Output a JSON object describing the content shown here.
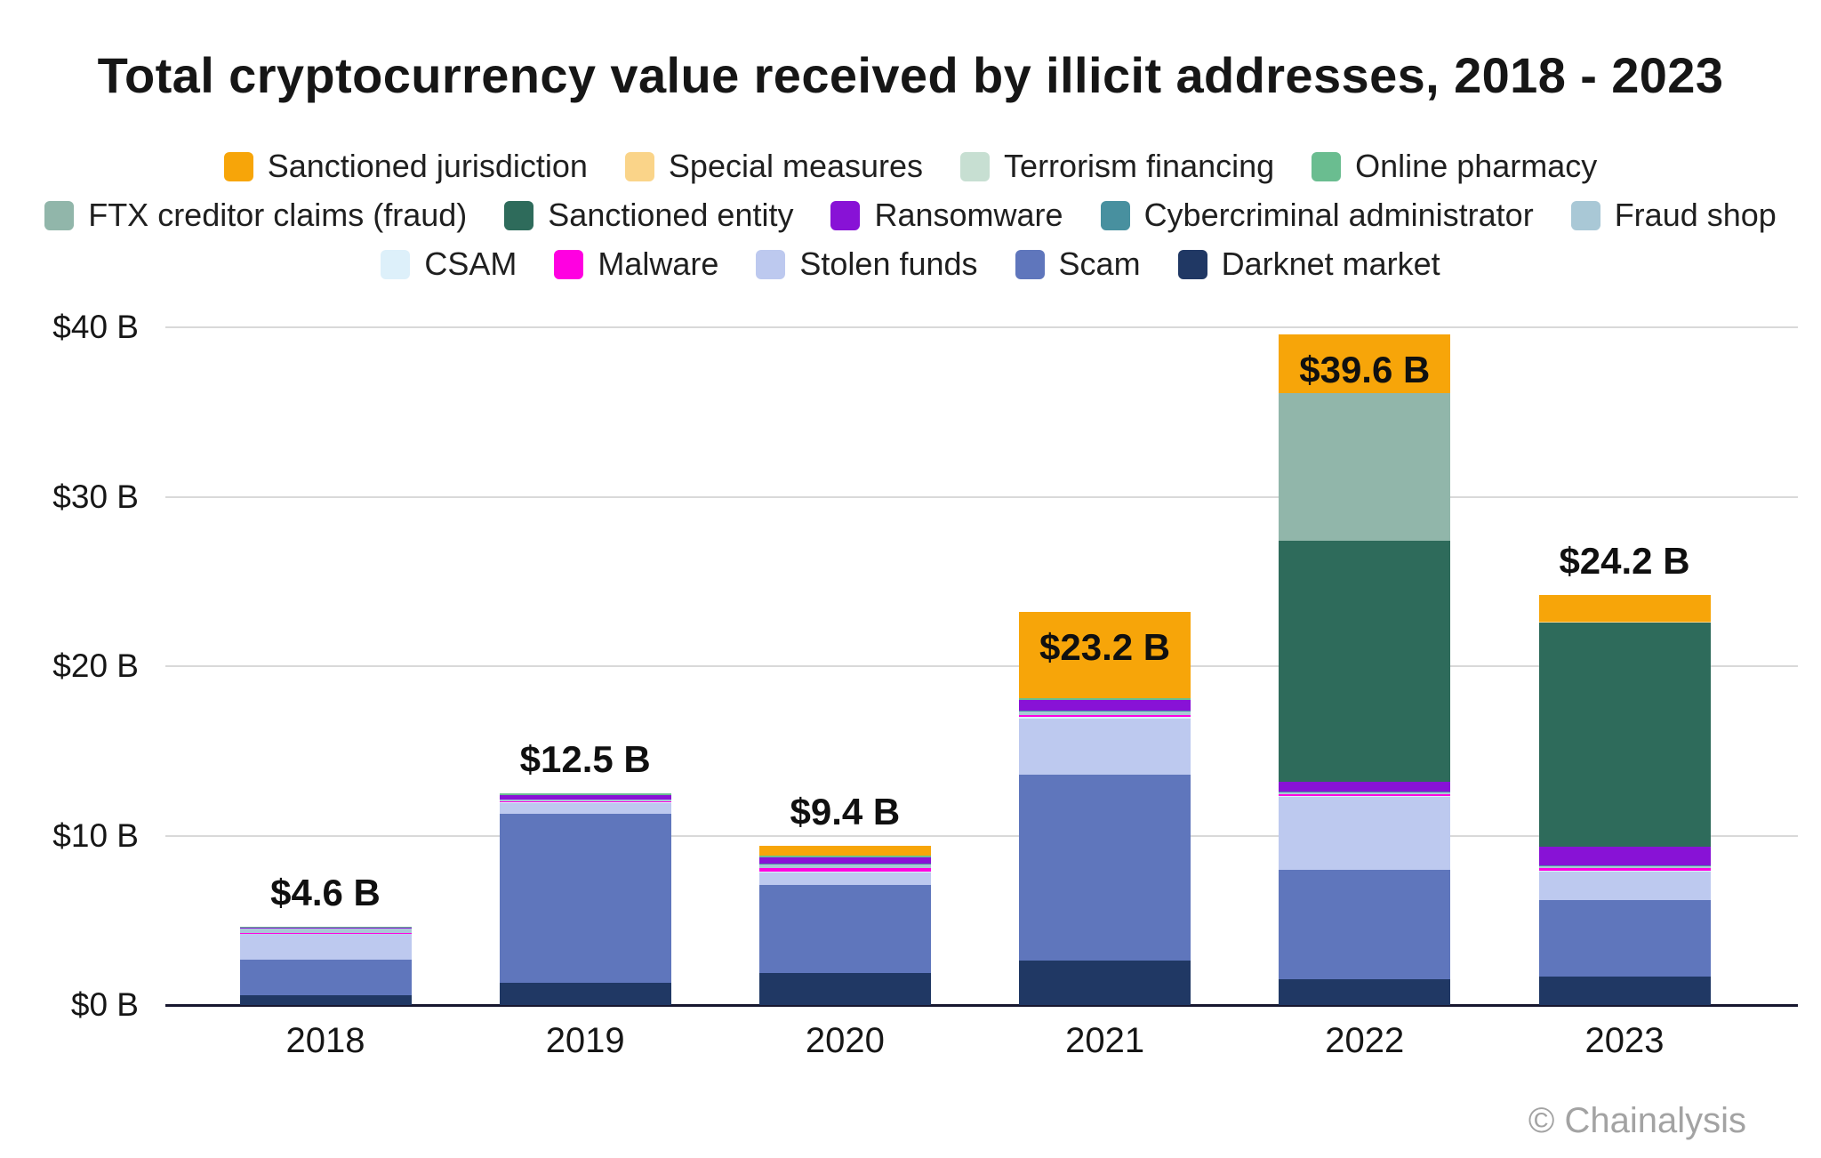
{
  "attribution": "© Chainalysis",
  "chart_data": {
    "type": "bar",
    "stacked": true,
    "title": "Total cryptocurrency value received by illicit addresses, 2018 - 2023",
    "categories": [
      "2018",
      "2019",
      "2020",
      "2021",
      "2022",
      "2023"
    ],
    "ylim": [
      0,
      40
    ],
    "grid": "horizontal",
    "legend_position": "top",
    "yticks": [
      {
        "value": 0,
        "label": "$0 B"
      },
      {
        "value": 10,
        "label": "$10 B"
      },
      {
        "value": 20,
        "label": "$20 B"
      },
      {
        "value": 30,
        "label": "$30 B"
      },
      {
        "value": 40,
        "label": "$40 B"
      }
    ],
    "totals": [
      4.6,
      12.5,
      9.4,
      23.2,
      39.6,
      24.2
    ],
    "total_labels": [
      "$4.6 B",
      "$12.5 B",
      "$9.4 B",
      "$23.2 B",
      "$39.6 B",
      "$24.2 B"
    ],
    "total_label_inside_bar": [
      false,
      false,
      false,
      true,
      true,
      false
    ],
    "series": [
      {
        "name": "Darknet market",
        "color": "#203864",
        "values": [
          0.6,
          1.3,
          1.9,
          2.6,
          1.5,
          1.7
        ]
      },
      {
        "name": "Scam",
        "color": "#5f76bc",
        "values": [
          2.1,
          10.0,
          5.2,
          11.0,
          6.5,
          4.5
        ]
      },
      {
        "name": "Stolen funds",
        "color": "#bdc9ef",
        "values": [
          1.5,
          0.6,
          0.7,
          3.3,
          4.3,
          1.7
        ]
      },
      {
        "name": "CSAM",
        "color": "#ddf0fa",
        "values": [
          0,
          0.05,
          0.05,
          0.1,
          0.05,
          0.05
        ]
      },
      {
        "name": "Malware",
        "color": "#ff00e1",
        "values": [
          0.05,
          0.05,
          0.25,
          0.1,
          0.1,
          0.15
        ]
      },
      {
        "name": "Fraud shop",
        "color": "#a9c8d6",
        "values": [
          0.25,
          0.15,
          0.2,
          0.25,
          0.1,
          0.1
        ]
      },
      {
        "name": "Cybercriminal administrator",
        "color": "#48909f",
        "values": [
          0,
          0,
          0.05,
          0.05,
          0.05,
          0.05
        ]
      },
      {
        "name": "Ransomware",
        "color": "#8812d6",
        "values": [
          0.05,
          0.25,
          0.35,
          0.6,
          0.6,
          1.1
        ]
      },
      {
        "name": "Sanctioned entity",
        "color": "#2e6b5b",
        "values": [
          0,
          0,
          0,
          0,
          14.2,
          13.2
        ]
      },
      {
        "name": "FTX creditor claims (fraud)",
        "color": "#91b6aa",
        "values": [
          0,
          0,
          0,
          0,
          8.7,
          0
        ]
      },
      {
        "name": "Online pharmacy",
        "color": "#6abd90",
        "values": [
          0.05,
          0.1,
          0.1,
          0.1,
          0,
          0
        ]
      },
      {
        "name": "Terrorism financing",
        "color": "#c7dfd2",
        "values": [
          0,
          0,
          0,
          0,
          0,
          0
        ]
      },
      {
        "name": "Special measures",
        "color": "#fad489",
        "values": [
          0,
          0,
          0,
          0,
          0,
          0.05
        ]
      },
      {
        "name": "Sanctioned jurisdiction",
        "color": "#f7a509",
        "values": [
          0,
          0,
          0.6,
          5.1,
          3.5,
          1.6
        ]
      }
    ],
    "legend_rows": [
      [
        "Sanctioned jurisdiction",
        "Special measures",
        "Terrorism financing",
        "Online pharmacy"
      ],
      [
        "FTX creditor claims (fraud)",
        "Sanctioned entity",
        "Ransomware",
        "Cybercriminal administrator",
        "Fraud shop"
      ],
      [
        "CSAM",
        "Malware",
        "Stolen funds",
        "Scam",
        "Darknet market"
      ]
    ]
  }
}
